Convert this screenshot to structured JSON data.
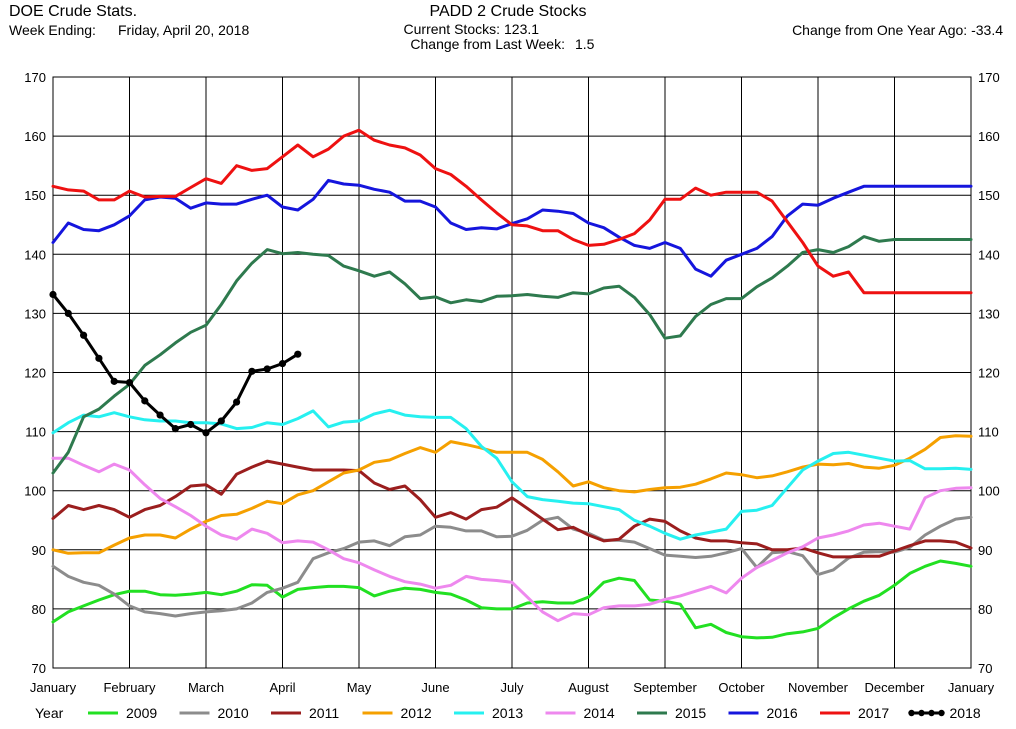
{
  "header": {
    "source_title": "DOE Crude Stats.",
    "week_ending_label": "Week Ending:",
    "week_ending_value": "Friday, April 20, 2018",
    "chart_title": "PADD 2 Crude Stocks",
    "current_stocks_label": "Current Stocks:",
    "current_stocks_value": "123.1",
    "change_week_label": "Change from Last Week:",
    "change_week_value": "1.5",
    "change_year_label": "Change from One Year Ago:",
    "change_year_value": "-33.4"
  },
  "chart_data": {
    "type": "line",
    "title": "PADD 2 Crude Stocks",
    "xlabel": "",
    "ylabel": "",
    "ylim": [
      70,
      170
    ],
    "yticks": [
      70,
      80,
      90,
      100,
      110,
      120,
      130,
      140,
      150,
      160,
      170
    ],
    "xlim": [
      0,
      12
    ],
    "x_tick_labels": [
      "January",
      "February",
      "March",
      "April",
      "May",
      "June",
      "July",
      "August",
      "September",
      "October",
      "November",
      "December",
      "January"
    ],
    "grid": true,
    "legend_title": "Year",
    "legend_placement": "bottom",
    "series": [
      {
        "name": "2009",
        "color": "#22e022",
        "markers": false,
        "values": [
          77.8,
          79.5,
          80.5,
          81.5,
          82.4,
          83.0,
          83.0,
          82.4,
          82.3,
          82.5,
          82.8,
          82.4,
          83.0,
          84.1,
          84.0,
          82.0,
          83.3,
          83.6,
          83.8,
          83.8,
          83.6,
          82.2,
          83.0,
          83.5,
          83.3,
          82.8,
          82.5,
          81.5,
          80.2,
          80.0,
          80.0,
          81.0,
          81.2,
          81.0,
          81.0,
          82.0,
          84.5,
          85.2,
          84.8,
          81.5,
          81.3,
          80.8,
          76.8,
          77.4,
          76.0,
          75.3,
          75.1,
          75.2,
          75.8,
          76.1,
          76.7,
          78.5,
          80.0,
          81.3,
          82.3,
          84.0,
          86.0,
          87.2,
          88.1,
          87.7,
          87.2
        ]
      },
      {
        "name": "2010",
        "color": "#8c8c8c",
        "markers": false,
        "values": [
          87.2,
          85.5,
          84.5,
          84.0,
          82.5,
          80.5,
          79.5,
          79.2,
          78.8,
          79.2,
          79.5,
          79.7,
          80.0,
          81.0,
          82.8,
          83.5,
          84.5,
          88.5,
          89.5,
          90.2,
          91.3,
          91.5,
          90.7,
          92.2,
          92.5,
          94.0,
          93.8,
          93.2,
          93.2,
          92.2,
          92.3,
          93.3,
          95.0,
          95.5,
          93.5,
          92.8,
          91.6,
          91.6,
          91.3,
          90.2,
          89.1,
          88.9,
          88.7,
          88.9,
          89.5,
          90.2,
          87.0,
          89.5,
          89.7,
          89.0,
          85.8,
          86.6,
          88.6,
          89.6,
          89.7,
          89.6,
          90.4,
          92.5,
          94.0,
          95.2,
          95.5
        ]
      },
      {
        "name": "2011",
        "color": "#9b1e1e",
        "markers": false,
        "values": [
          95.3,
          97.5,
          96.8,
          97.5,
          96.8,
          95.5,
          96.8,
          97.5,
          99.0,
          100.8,
          101.0,
          99.4,
          102.8,
          104.0,
          105.0,
          104.5,
          104.0,
          103.5,
          103.5,
          103.5,
          103.4,
          101.3,
          100.2,
          100.8,
          98.5,
          95.5,
          96.3,
          95.2,
          96.8,
          97.2,
          98.8,
          97.0,
          95.2,
          93.4,
          93.8,
          92.5,
          91.5,
          91.8,
          94.0,
          95.2,
          94.8,
          93.2,
          92.0,
          91.5,
          91.5,
          91.2,
          91.0,
          90.0,
          90.0,
          90.3,
          89.5,
          88.8,
          88.8,
          88.9,
          88.9,
          89.8,
          90.7,
          91.5,
          91.5,
          91.3,
          90.3
        ]
      },
      {
        "name": "2012",
        "color": "#f5a000",
        "markers": false,
        "values": [
          90.0,
          89.4,
          89.5,
          89.5,
          90.8,
          92.0,
          92.5,
          92.5,
          92.0,
          93.5,
          94.8,
          95.8,
          96.0,
          97.0,
          98.2,
          97.8,
          99.3,
          100.0,
          101.5,
          103.0,
          103.5,
          104.8,
          105.2,
          106.3,
          107.3,
          106.5,
          108.3,
          107.8,
          107.2,
          106.5,
          106.5,
          106.5,
          105.3,
          103.2,
          100.8,
          101.5,
          100.5,
          100.0,
          99.8,
          100.2,
          100.5,
          100.6,
          101.1,
          102.0,
          103.0,
          102.7,
          102.2,
          102.5,
          103.2,
          104.0,
          104.5,
          104.4,
          104.6,
          104.0,
          103.8,
          104.3,
          105.5,
          107.0,
          109.0,
          109.3,
          109.2
        ]
      },
      {
        "name": "2013",
        "color": "#26f0f0",
        "markers": false,
        "values": [
          109.8,
          111.5,
          112.8,
          112.5,
          113.2,
          112.5,
          112.0,
          111.8,
          111.8,
          111.5,
          111.5,
          111.3,
          110.5,
          110.7,
          111.5,
          111.2,
          112.2,
          113.5,
          110.8,
          111.6,
          111.8,
          113.0,
          113.6,
          112.8,
          112.5,
          112.4,
          112.4,
          110.5,
          107.5,
          105.5,
          101.5,
          99.0,
          98.5,
          98.2,
          97.9,
          97.8,
          97.3,
          96.8,
          95.0,
          94.0,
          92.8,
          91.8,
          92.5,
          93.0,
          93.5,
          96.5,
          96.7,
          97.5,
          100.5,
          103.5,
          105.0,
          106.3,
          106.5,
          106.0,
          105.5,
          105.0,
          105.1,
          103.7,
          103.7,
          103.8,
          103.6
        ]
      },
      {
        "name": "2014",
        "color": "#ee88ee",
        "markers": false,
        "values": [
          105.5,
          105.5,
          104.3,
          103.2,
          104.5,
          103.5,
          101.0,
          98.7,
          97.3,
          95.8,
          94.0,
          92.5,
          91.8,
          93.5,
          92.8,
          91.2,
          91.5,
          91.3,
          90.0,
          88.5,
          87.8,
          86.6,
          85.5,
          84.6,
          84.2,
          83.5,
          84.0,
          85.5,
          85.0,
          84.8,
          84.5,
          82.0,
          79.5,
          78.0,
          79.2,
          79.0,
          80.2,
          80.5,
          80.5,
          80.8,
          81.6,
          82.2,
          83.0,
          83.8,
          82.7,
          85.2,
          87.0,
          88.2,
          89.5,
          90.5,
          92.0,
          92.5,
          93.2,
          94.2,
          94.5,
          94.0,
          93.5,
          98.8,
          100.0,
          100.4,
          100.5
        ]
      },
      {
        "name": "2015",
        "color": "#2e7a4e",
        "markers": false,
        "values": [
          103.0,
          106.5,
          112.5,
          113.8,
          116.0,
          118.0,
          121.2,
          123.0,
          125.0,
          126.8,
          128.0,
          131.5,
          135.5,
          138.5,
          140.8,
          140.1,
          140.3,
          140.0,
          139.8,
          138.0,
          137.2,
          136.3,
          137.0,
          135.0,
          132.5,
          132.8,
          131.8,
          132.3,
          132.0,
          132.9,
          133.0,
          133.2,
          132.9,
          132.7,
          133.5,
          133.3,
          134.3,
          134.6,
          132.7,
          129.8,
          125.8,
          126.2,
          129.5,
          131.5,
          132.5,
          132.5,
          134.5,
          136.0,
          138.0,
          140.3,
          140.8,
          140.3,
          141.3,
          143.0,
          142.2,
          142.5,
          142.5,
          142.5,
          142.5,
          142.5,
          142.5
        ]
      },
      {
        "name": "2016",
        "color": "#1515dd",
        "markers": false,
        "values": [
          142.0,
          145.3,
          144.2,
          144.0,
          145.0,
          146.5,
          149.2,
          149.7,
          149.5,
          147.8,
          148.7,
          148.5,
          148.5,
          149.3,
          150.0,
          148.0,
          147.5,
          149.3,
          152.5,
          151.9,
          151.7,
          151.0,
          150.5,
          149.0,
          149.0,
          148.0,
          145.3,
          144.2,
          144.5,
          144.3,
          145.2,
          146.0,
          147.5,
          147.3,
          146.9,
          145.3,
          144.5,
          142.9,
          141.5,
          141.0,
          142.0,
          141.0,
          137.5,
          136.3,
          139.0,
          140.0,
          141.0,
          143.0,
          146.5,
          148.5,
          148.3,
          149.5,
          150.5,
          151.5,
          151.5,
          151.5,
          151.5,
          151.5,
          151.5,
          151.5,
          151.5
        ]
      },
      {
        "name": "2017",
        "color": "#ee1111",
        "markers": false,
        "values": [
          151.5,
          150.9,
          150.7,
          149.2,
          149.2,
          150.7,
          149.7,
          149.8,
          149.8,
          151.3,
          152.8,
          152.0,
          155.0,
          154.2,
          154.5,
          156.5,
          158.5,
          156.5,
          157.8,
          160.0,
          161.0,
          159.3,
          158.5,
          158.0,
          156.8,
          154.5,
          153.5,
          151.5,
          149.2,
          147.0,
          145.0,
          144.8,
          144.0,
          144.0,
          142.5,
          141.5,
          141.7,
          142.5,
          143.5,
          145.8,
          149.3,
          149.3,
          151.2,
          150.0,
          150.5,
          150.5,
          150.5,
          149.0,
          145.5,
          142.0,
          138.0,
          136.3,
          137.0,
          133.5,
          133.5,
          133.5,
          133.5,
          133.5,
          133.5,
          133.5,
          133.5
        ]
      },
      {
        "name": "2018",
        "color": "#000000",
        "markers": true,
        "values": [
          133.2,
          130.0,
          126.3,
          122.4,
          118.5,
          118.3,
          115.2,
          112.8,
          110.5,
          111.2,
          109.8,
          111.8,
          115.0,
          120.2,
          120.6,
          121.5,
          123.1
        ]
      }
    ]
  }
}
